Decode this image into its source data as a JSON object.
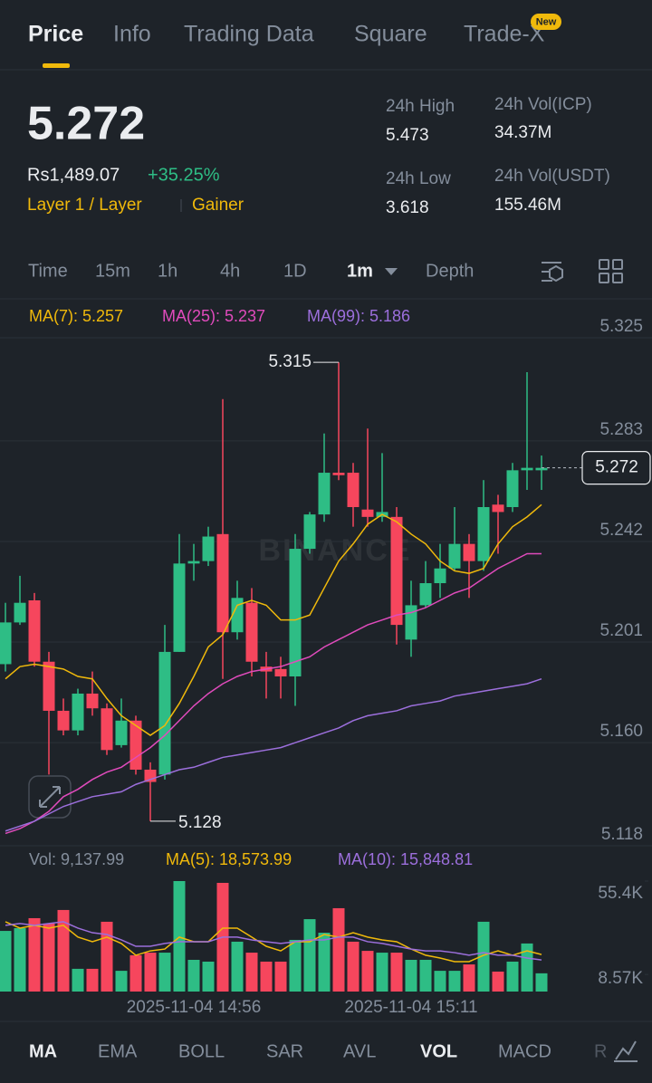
{
  "tabs": [
    "Price",
    "Info",
    "Trading Data",
    "Square",
    "Trade-X"
  ],
  "active_tab": 0,
  "new_badge": "New",
  "price": "5.272",
  "fiat": "Rs1,489.07",
  "change": "+35.25%",
  "tags": [
    "Layer 1 / Layer",
    "Gainer"
  ],
  "stats": [
    {
      "label": "24h High",
      "value": "5.473"
    },
    {
      "label": "24h Vol(ICP)",
      "value": "34.37M"
    },
    {
      "label": "24h Low",
      "value": "3.618"
    },
    {
      "label": "24h Vol(USDT)",
      "value": "155.46M"
    }
  ],
  "intervals": [
    "Time",
    "15m",
    "1h",
    "4h",
    "1D",
    "1m",
    "Depth"
  ],
  "active_interval": 5,
  "indicators": [
    "MA",
    "EMA",
    "BOLL",
    "SAR",
    "AVL",
    "VOL",
    "MACD",
    "R"
  ],
  "active_indicators": [
    0,
    5
  ],
  "chart_data": [
    {
      "type": "candlestick",
      "watermark": "BINANCE",
      "legend": [
        "MA(7): 5.257",
        "MA(25): 5.237",
        "MA(99): 5.186"
      ],
      "categories": [
        null,
        null,
        null,
        null,
        null,
        null,
        null,
        null,
        null,
        null,
        null,
        null,
        null,
        "2025-11-04 14:56",
        null,
        null,
        null,
        null,
        null,
        null,
        null,
        null,
        null,
        null,
        null,
        null,
        null,
        null,
        "2025-11-04 15:11",
        null,
        null,
        null,
        null,
        null,
        null,
        null,
        null,
        null
      ],
      "open": [
        5.192,
        5.209,
        5.218,
        5.193,
        5.173,
        5.165,
        5.18,
        5.174,
        5.159,
        5.169,
        5.149,
        5.147,
        5.197,
        5.233,
        5.234,
        5.245,
        5.205,
        5.217,
        5.191,
        5.19,
        5.187,
        5.239,
        5.253,
        5.27,
        5.27,
        5.255,
        5.252,
        5.252,
        5.202,
        5.216,
        5.225,
        5.231,
        5.241,
        5.234,
        5.257,
        5.256,
        5.271,
        5.271
      ],
      "high": [
        5.217,
        5.228,
        5.221,
        5.197,
        5.178,
        5.182,
        5.189,
        5.176,
        5.178,
        5.171,
        5.152,
        5.208,
        5.245,
        5.241,
        5.248,
        5.3,
        5.226,
        5.223,
        5.197,
        5.195,
        5.245,
        5.254,
        5.286,
        5.315,
        5.274,
        5.288,
        5.278,
        5.256,
        5.226,
        5.234,
        5.241,
        5.256,
        5.245,
        5.267,
        5.261,
        5.274,
        5.311,
        5.277
      ],
      "low": [
        5.189,
        5.208,
        5.191,
        5.147,
        5.163,
        5.163,
        5.171,
        5.155,
        5.158,
        5.147,
        5.128,
        5.145,
        5.197,
        5.226,
        5.232,
        5.186,
        5.202,
        5.187,
        5.178,
        5.178,
        5.175,
        5.237,
        5.25,
        5.267,
        5.248,
        5.248,
        5.25,
        5.2,
        5.195,
        5.215,
        5.219,
        5.23,
        5.219,
        5.23,
        5.237,
        5.254,
        5.263,
        5.263
      ],
      "close": [
        5.209,
        5.217,
        5.193,
        5.173,
        5.165,
        5.18,
        5.174,
        5.157,
        5.169,
        5.149,
        5.144,
        5.197,
        5.233,
        5.234,
        5.244,
        5.205,
        5.219,
        5.193,
        5.189,
        5.187,
        5.239,
        5.253,
        5.27,
        5.269,
        5.256,
        5.252,
        5.254,
        5.208,
        5.216,
        5.225,
        5.231,
        5.241,
        5.234,
        5.256,
        5.254,
        5.271,
        5.272,
        5.272
      ],
      "up_color": "#2ebd85",
      "down_color": "#f6465d",
      "series": [
        {
          "name": "MA(7)",
          "color": "#f0b90b",
          "values": [
            5.186,
            5.191,
            5.192,
            5.191,
            5.19,
            5.187,
            5.186,
            5.178,
            5.171,
            5.167,
            5.163,
            5.167,
            5.176,
            5.187,
            5.199,
            5.204,
            5.216,
            5.218,
            5.216,
            5.21,
            5.21,
            5.212,
            5.223,
            5.234,
            5.241,
            5.249,
            5.253,
            5.25,
            5.245,
            5.241,
            5.234,
            5.23,
            5.229,
            5.231,
            5.241,
            5.248,
            5.252,
            5.257
          ]
        },
        {
          "name": "MA(25)",
          "color": "#e04bbc",
          "values": [
            5.123,
            5.125,
            5.128,
            5.132,
            5.138,
            5.141,
            5.145,
            5.148,
            5.15,
            5.154,
            5.158,
            5.163,
            5.169,
            5.175,
            5.18,
            5.184,
            5.187,
            5.189,
            5.19,
            5.191,
            5.193,
            5.195,
            5.199,
            5.202,
            5.205,
            5.208,
            5.21,
            5.212,
            5.213,
            5.215,
            5.218,
            5.221,
            5.223,
            5.227,
            5.231,
            5.234,
            5.237,
            5.237
          ]
        },
        {
          "name": "MA(99)",
          "color": "#9c6fdc",
          "values": [
            5.124,
            5.126,
            5.128,
            5.131,
            5.134,
            5.136,
            5.138,
            5.139,
            5.14,
            5.143,
            5.145,
            5.147,
            5.149,
            5.15,
            5.152,
            5.154,
            5.155,
            5.156,
            5.157,
            5.158,
            5.16,
            5.162,
            5.164,
            5.166,
            5.169,
            5.171,
            5.172,
            5.173,
            5.175,
            5.176,
            5.177,
            5.179,
            5.18,
            5.181,
            5.182,
            5.183,
            5.184,
            5.186
          ]
        }
      ],
      "high_label": 5.315,
      "low_label": 5.128,
      "last_price": 5.272,
      "ylim": [
        5.118,
        5.325
      ],
      "yticks": [
        5.325,
        5.283,
        5.242,
        5.201,
        {
          "value": 5.16,
          "label": "5.160"
        },
        5.118
      ],
      "grid": true
    },
    {
      "type": "bar",
      "legend": [
        "Vol: 9,137.99",
        "MA(5): 18,573.99",
        "MA(10): 15,848.81"
      ],
      "values": [
        30400,
        31800,
        36800,
        34100,
        40900,
        11400,
        11400,
        35000,
        10400,
        18200,
        19500,
        19500,
        55400,
        15900,
        15000,
        54500,
        25000,
        19500,
        15000,
        15000,
        25900,
        36300,
        29500,
        41800,
        25000,
        20400,
        19500,
        19500,
        15900,
        15900,
        10400,
        10400,
        13600,
        35000,
        10000,
        15000,
        24100,
        9137.99
      ],
      "series": [
        {
          "name": "MA(5)",
          "color": "#f0b90b",
          "values": [
            35000,
            31800,
            33200,
            31800,
            33200,
            27300,
            25000,
            27300,
            24100,
            18200,
            20400,
            21300,
            27300,
            25000,
            25000,
            31800,
            31800,
            27300,
            22700,
            20400,
            25000,
            25000,
            28600,
            27300,
            29500,
            27300,
            25900,
            25000,
            21300,
            18200,
            16800,
            15000,
            15000,
            18200,
            20400,
            18200,
            20400,
            18573.99
          ]
        },
        {
          "name": "MA(10)",
          "color": "#9c6fdc",
          "values": [
            33200,
            34100,
            33200,
            34100,
            35000,
            31800,
            29500,
            28600,
            25900,
            22700,
            22700,
            24100,
            25000,
            25000,
            25000,
            27300,
            27300,
            25900,
            25000,
            24100,
            25000,
            25900,
            25900,
            27300,
            27300,
            25000,
            24100,
            22700,
            21300,
            20400,
            20400,
            19500,
            18200,
            19500,
            18200,
            18200,
            16800,
            15848.81
          ]
        }
      ],
      "ylim": [
        0,
        55400
      ],
      "yticks": [
        {
          "value": 55400,
          "label": "55.4K"
        },
        {
          "value": 8570,
          "label": "8.57K"
        }
      ]
    }
  ]
}
